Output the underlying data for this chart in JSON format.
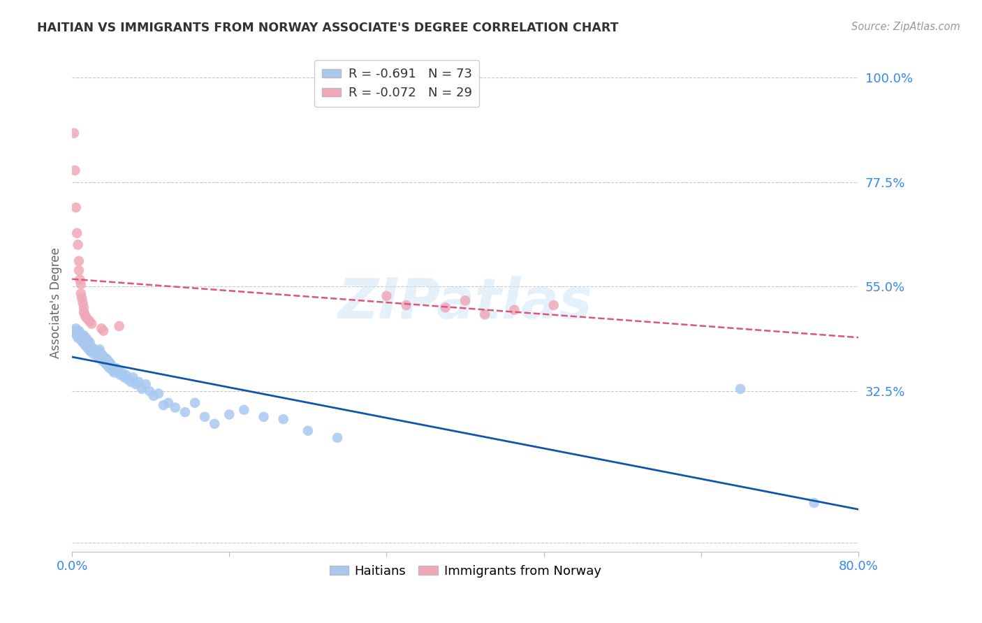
{
  "title": "HAITIAN VS IMMIGRANTS FROM NORWAY ASSOCIATE'S DEGREE CORRELATION CHART",
  "source": "Source: ZipAtlas.com",
  "ylabel": "Associate's Degree",
  "watermark": "ZIPatlas",
  "xlim": [
    0.0,
    0.8
  ],
  "ylim": [
    -0.02,
    1.05
  ],
  "xticks": [
    0.0,
    0.16,
    0.32,
    0.48,
    0.64,
    0.8
  ],
  "xticklabels": [
    "0.0%",
    "",
    "",
    "",
    "",
    "80.0%"
  ],
  "ytick_positions": [
    0.0,
    0.325,
    0.55,
    0.775,
    1.0
  ],
  "ytick_labels": [
    "",
    "32.5%",
    "55.0%",
    "77.5%",
    "100.0%"
  ],
  "grid_color": "#c8c8c8",
  "background_color": "#ffffff",
  "haitians_color": "#a8c8f0",
  "norway_color": "#f0a8b8",
  "haitians_line_color": "#1155aa",
  "norway_line_color": "#dd5577",
  "R_haitians": -0.691,
  "N_haitians": 73,
  "R_norway": -0.072,
  "N_norway": 29,
  "haitians_x": [
    0.002,
    0.003,
    0.004,
    0.005,
    0.006,
    0.007,
    0.008,
    0.009,
    0.01,
    0.011,
    0.012,
    0.013,
    0.014,
    0.015,
    0.016,
    0.017,
    0.018,
    0.019,
    0.02,
    0.021,
    0.022,
    0.023,
    0.024,
    0.025,
    0.026,
    0.027,
    0.028,
    0.029,
    0.03,
    0.031,
    0.032,
    0.033,
    0.034,
    0.035,
    0.036,
    0.037,
    0.038,
    0.039,
    0.04,
    0.041,
    0.042,
    0.043,
    0.045,
    0.047,
    0.049,
    0.051,
    0.053,
    0.055,
    0.057,
    0.06,
    0.062,
    0.065,
    0.068,
    0.071,
    0.075,
    0.079,
    0.083,
    0.088,
    0.093,
    0.098,
    0.105,
    0.115,
    0.125,
    0.135,
    0.145,
    0.16,
    0.175,
    0.195,
    0.215,
    0.24,
    0.27,
    0.68,
    0.755
  ],
  "haitians_y": [
    0.455,
    0.45,
    0.46,
    0.445,
    0.44,
    0.455,
    0.45,
    0.435,
    0.445,
    0.43,
    0.445,
    0.425,
    0.44,
    0.42,
    0.435,
    0.415,
    0.43,
    0.41,
    0.42,
    0.415,
    0.405,
    0.415,
    0.41,
    0.405,
    0.4,
    0.41,
    0.415,
    0.395,
    0.405,
    0.39,
    0.4,
    0.395,
    0.385,
    0.395,
    0.38,
    0.39,
    0.375,
    0.385,
    0.38,
    0.37,
    0.375,
    0.365,
    0.375,
    0.37,
    0.36,
    0.365,
    0.355,
    0.36,
    0.35,
    0.345,
    0.355,
    0.34,
    0.345,
    0.33,
    0.34,
    0.325,
    0.315,
    0.32,
    0.295,
    0.3,
    0.29,
    0.28,
    0.3,
    0.27,
    0.255,
    0.275,
    0.285,
    0.27,
    0.265,
    0.24,
    0.225,
    0.33,
    0.085
  ],
  "norway_x": [
    0.002,
    0.003,
    0.004,
    0.005,
    0.006,
    0.007,
    0.007,
    0.008,
    0.009,
    0.009,
    0.01,
    0.011,
    0.012,
    0.012,
    0.013,
    0.014,
    0.016,
    0.018,
    0.02,
    0.03,
    0.032,
    0.048,
    0.32,
    0.34,
    0.38,
    0.4,
    0.42,
    0.45,
    0.49
  ],
  "norway_y": [
    0.88,
    0.8,
    0.72,
    0.665,
    0.64,
    0.605,
    0.585,
    0.565,
    0.555,
    0.535,
    0.525,
    0.515,
    0.505,
    0.495,
    0.49,
    0.485,
    0.48,
    0.475,
    0.47,
    0.46,
    0.455,
    0.465,
    0.53,
    0.51,
    0.505,
    0.52,
    0.49,
    0.5,
    0.51
  ],
  "title_color": "#333333",
  "axis_label_color": "#666666",
  "ytick_color": "#3388ee",
  "xtick_color": "#3388ee"
}
